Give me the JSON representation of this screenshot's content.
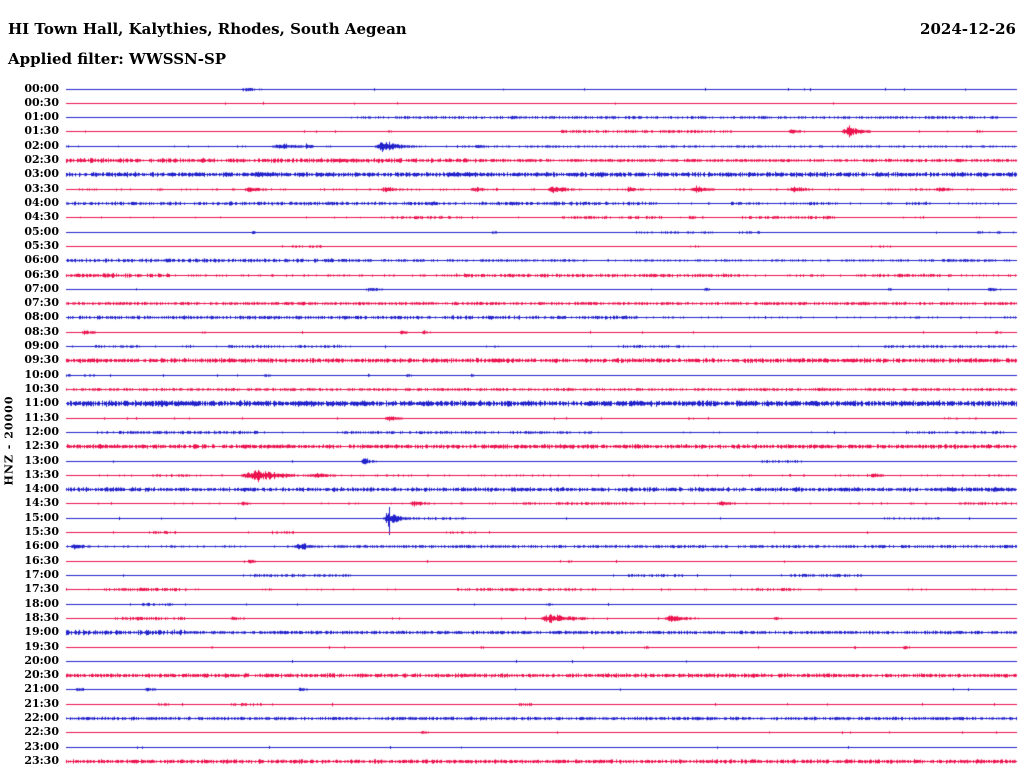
{
  "header": {
    "title": "HI Town Hall, Kalythies, Rhodes, South Aegean",
    "date": "2024-12-26",
    "filter_text": "Applied filter: WWSSN-SP"
  },
  "chart_data": {
    "type": "line",
    "variant": "helicorder-daily-seismogram",
    "title": "HI Town Hall, Kalythies, Rhodes, South Aegean",
    "date": "2024-12-26",
    "applied_filter": "WWSSN-SP",
    "y_axis_label": "HNZ - 20000",
    "row_interval_minutes": 30,
    "x_range_minutes": [
      0,
      30
    ],
    "grid": false,
    "colors": {
      "blue": "#2121CB",
      "red": "#EC124E",
      "text": "#000000",
      "background": "#FFFFFF"
    },
    "bursts_format": "[minute_within_row, amplitude_px, width_px]",
    "patches_format": "[start_minute, end_minute, amplitude_px]",
    "rows": [
      {
        "time": "00:00",
        "color": "blue",
        "noise": 0.15,
        "patches": [],
        "bursts": [
          [
            5.7,
            1.8,
            14
          ]
        ]
      },
      {
        "time": "00:30",
        "color": "red",
        "noise": 0.1,
        "patches": [],
        "bursts": []
      },
      {
        "time": "01:00",
        "color": "blue",
        "noise": 0.25,
        "patches": [
          [
            9,
            29.5,
            0.8
          ]
        ],
        "bursts": [
          [
            14.1,
            1.5,
            12
          ]
        ]
      },
      {
        "time": "01:30",
        "color": "red",
        "noise": 0.1,
        "patches": [
          [
            15.3,
            21,
            0.8
          ]
        ],
        "bursts": [
          [
            10.2,
            1.2,
            4
          ],
          [
            22.9,
            2.5,
            10
          ],
          [
            24.7,
            6,
            12
          ],
          [
            28.8,
            1.2,
            8
          ]
        ]
      },
      {
        "time": "02:00",
        "color": "blue",
        "noise": 0.4,
        "patches": [
          [
            12.5,
            30,
            0.55
          ]
        ],
        "bursts": [
          [
            6.8,
            3,
            16
          ],
          [
            7.6,
            4,
            4
          ],
          [
            10.0,
            6.5,
            16
          ],
          [
            13.0,
            1.5,
            10
          ]
        ]
      },
      {
        "time": "02:30",
        "color": "red",
        "noise": 0.8,
        "patches": [
          [
            0,
            13,
            1.5
          ],
          [
            13,
            30,
            0.85
          ]
        ],
        "bursts": [
          [
            8.7,
            2.2,
            22
          ]
        ]
      },
      {
        "time": "03:00",
        "color": "blue",
        "noise": 1.2,
        "patches": [
          [
            0,
            30,
            1.6
          ]
        ],
        "bursts": [
          [
            6.1,
            2.8,
            14
          ],
          [
            12.3,
            2.2,
            12
          ]
        ]
      },
      {
        "time": "03:30",
        "color": "red",
        "noise": 0.5,
        "patches": [],
        "bursts": [
          [
            5.8,
            3,
            12
          ],
          [
            10.1,
            3.5,
            10
          ],
          [
            12.9,
            2.5,
            10
          ],
          [
            15.4,
            4.5,
            12
          ],
          [
            17.8,
            2.5,
            10
          ],
          [
            19.9,
            3.5,
            12
          ],
          [
            23.0,
            3,
            12
          ],
          [
            27.6,
            2.5,
            10
          ]
        ]
      },
      {
        "time": "04:00",
        "color": "blue",
        "noise": 0.5,
        "patches": [
          [
            0,
            18.6,
            1.1
          ],
          [
            21,
            21.9,
            1.0
          ],
          [
            23.4,
            24.3,
            1.0
          ],
          [
            26.4,
            27.3,
            1.0
          ]
        ],
        "bursts": [
          [
            14.1,
            1.8,
            10
          ]
        ]
      },
      {
        "time": "04:30",
        "color": "red",
        "noise": 0.35,
        "patches": [
          [
            10.2,
            12.6,
            0.9
          ],
          [
            15.6,
            18.9,
            0.9
          ],
          [
            21.3,
            24.3,
            0.9
          ]
        ],
        "bursts": [
          [
            19.7,
            2,
            8
          ]
        ]
      },
      {
        "time": "05:00",
        "color": "blue",
        "noise": 0.2,
        "patches": [
          [
            18,
            20.1,
            0.6
          ],
          [
            21.2,
            21.9,
            0.7
          ],
          [
            28.7,
            29.5,
            0.7
          ]
        ],
        "bursts": [
          [
            5.9,
            1.2,
            6
          ],
          [
            13.5,
            1.3,
            6
          ],
          [
            20.2,
            1.3,
            8
          ]
        ]
      },
      {
        "time": "05:30",
        "color": "red",
        "noise": 0.2,
        "patches": [
          [
            7.1,
            8.1,
            0.7
          ],
          [
            19.7,
            20.1,
            0.7
          ],
          [
            25.4,
            26.1,
            0.7
          ]
        ],
        "bursts": []
      },
      {
        "time": "06:00",
        "color": "blue",
        "noise": 0.45,
        "patches": [
          [
            0,
            9,
            1.2
          ],
          [
            9,
            16.5,
            0.7
          ],
          [
            17.8,
            29.8,
            0.55
          ],
          [
            27.3,
            29.4,
            0.8
          ]
        ],
        "bursts": []
      },
      {
        "time": "06:30",
        "color": "red",
        "noise": 0.6,
        "patches": [
          [
            0,
            3.3,
            1.4
          ],
          [
            12,
            21.3,
            1.1
          ],
          [
            25.2,
            27.6,
            1.0
          ]
        ],
        "bursts": []
      },
      {
        "time": "07:00",
        "color": "blue",
        "noise": 0.25,
        "patches": [],
        "bursts": [
          [
            9.6,
            2,
            10
          ],
          [
            20.2,
            1.5,
            6
          ],
          [
            26,
            1.2,
            5
          ],
          [
            29.2,
            1.8,
            8
          ]
        ]
      },
      {
        "time": "07:30",
        "color": "red",
        "noise": 0.55,
        "patches": [
          [
            0,
            30,
            0.9
          ]
        ],
        "bursts": [
          [
            7.5,
            1.5,
            8
          ],
          [
            25.2,
            1.5,
            8
          ]
        ]
      },
      {
        "time": "08:00",
        "color": "blue",
        "noise": 0.5,
        "patches": [
          [
            0,
            18,
            1.2
          ]
        ],
        "bursts": [
          [
            13.4,
            1.8,
            10
          ]
        ]
      },
      {
        "time": "08:30",
        "color": "red",
        "noise": 0.25,
        "patches": [],
        "bursts": [
          [
            0.6,
            2.2,
            10
          ],
          [
            4.3,
            1.3,
            6
          ],
          [
            10.6,
            1.8,
            6
          ],
          [
            11.3,
            1.8,
            6
          ],
          [
            29.4,
            1.2,
            6
          ]
        ]
      },
      {
        "time": "09:00",
        "color": "blue",
        "noise": 0.35,
        "patches": [
          [
            0.9,
            2.4,
            0.8
          ],
          [
            5.1,
            8.7,
            0.9
          ],
          [
            17.4,
            19.5,
            0.8
          ],
          [
            25.8,
            29.7,
            0.8
          ]
        ],
        "bursts": []
      },
      {
        "time": "09:30",
        "color": "red",
        "noise": 1.0,
        "patches": [
          [
            0,
            30,
            1.5
          ]
        ],
        "bursts": []
      },
      {
        "time": "10:00",
        "color": "blue",
        "noise": 0.2,
        "patches": [
          [
            0,
            0.9,
            0.7
          ]
        ],
        "bursts": [
          [
            6.3,
            1.2,
            6
          ],
          [
            10.8,
            1.2,
            6
          ],
          [
            12.8,
            1.2,
            6
          ]
        ]
      },
      {
        "time": "10:30",
        "color": "red",
        "noise": 0.5,
        "patches": [
          [
            0,
            30,
            0.8
          ]
        ],
        "bursts": [
          [
            15.9,
            1.5,
            8
          ],
          [
            23.8,
            2,
            10
          ]
        ]
      },
      {
        "time": "11:00",
        "color": "blue",
        "noise": 1.6,
        "patches": [
          [
            0,
            30,
            2.0
          ]
        ],
        "bursts": []
      },
      {
        "time": "11:30",
        "color": "red",
        "noise": 0.2,
        "patches": [
          [
            27.6,
            28.8,
            0.6
          ]
        ],
        "bursts": [
          [
            10.2,
            3,
            10
          ],
          [
            19.7,
            1.2,
            6
          ]
        ]
      },
      {
        "time": "12:00",
        "color": "blue",
        "noise": 0.35,
        "patches": [
          [
            0.9,
            6.3,
            0.9
          ],
          [
            8.7,
            16.8,
            0.8
          ],
          [
            26.4,
            29.7,
            0.8
          ]
        ],
        "bursts": []
      },
      {
        "time": "12:30",
        "color": "red",
        "noise": 0.9,
        "patches": [
          [
            0,
            30,
            1.4
          ]
        ],
        "bursts": []
      },
      {
        "time": "13:00",
        "color": "blue",
        "noise": 0.2,
        "patches": [
          [
            21.9,
            23.1,
            0.7
          ]
        ],
        "bursts": [
          [
            9.4,
            4,
            7
          ]
        ]
      },
      {
        "time": "13:30",
        "color": "red",
        "noise": 0.45,
        "patches": [
          [
            2.7,
            3.9,
            0.8
          ]
        ],
        "bursts": [
          [
            6.0,
            7,
            24
          ],
          [
            7.9,
            2.5,
            14
          ],
          [
            25.5,
            2,
            10
          ]
        ]
      },
      {
        "time": "14:00",
        "color": "blue",
        "noise": 0.9,
        "patches": [
          [
            0,
            30,
            1.4
          ]
        ],
        "bursts": [
          [
            16.7,
            2,
            10
          ]
        ]
      },
      {
        "time": "14:30",
        "color": "red",
        "noise": 0.4,
        "patches": [
          [
            14.4,
            17.7,
            0.8
          ],
          [
            28.2,
            30,
            0.8
          ]
        ],
        "bursts": [
          [
            5.6,
            2,
            8
          ],
          [
            11.0,
            3,
            10
          ],
          [
            20.7,
            2.5,
            10
          ]
        ]
      },
      {
        "time": "15:00",
        "color": "blue",
        "noise": 0.25,
        "patches": [
          [
            10.5,
            12.6,
            0.8
          ],
          [
            25.8,
            27.6,
            0.6
          ]
        ],
        "bursts": [
          [
            10.2,
            9,
            9
          ]
        ]
      },
      {
        "time": "15:30",
        "color": "red",
        "noise": 0.3,
        "patches": [
          [
            2.6,
            3.5,
            0.9
          ],
          [
            6.5,
            7.2,
            1.0
          ],
          [
            12,
            13.2,
            0.6
          ]
        ],
        "bursts": []
      },
      {
        "time": "16:00",
        "color": "blue",
        "noise": 0.55,
        "patches": [
          [
            8.4,
            30,
            0.9
          ]
        ],
        "bursts": [
          [
            0.3,
            3.5,
            10
          ],
          [
            7.4,
            4,
            10
          ]
        ]
      },
      {
        "time": "16:30",
        "color": "red",
        "noise": 0.15,
        "patches": [],
        "bursts": [
          [
            5.8,
            1.5,
            8
          ],
          [
            15.9,
            1.0,
            6
          ]
        ]
      },
      {
        "time": "17:00",
        "color": "blue",
        "noise": 0.3,
        "patches": [
          [
            5.7,
            9,
            0.8
          ],
          [
            17.7,
            19.5,
            0.8
          ],
          [
            22.8,
            25.2,
            0.9
          ]
        ],
        "bursts": [
          [
            24.3,
            1.5,
            8
          ]
        ]
      },
      {
        "time": "17:30",
        "color": "red",
        "noise": 0.4,
        "patches": [
          [
            1.2,
            3.8,
            1.0
          ],
          [
            12.3,
            16.8,
            0.8
          ],
          [
            21.3,
            23.1,
            0.8
          ]
        ],
        "bursts": [
          [
            2.4,
            1.5,
            8
          ]
        ]
      },
      {
        "time": "18:00",
        "color": "blue",
        "noise": 0.2,
        "patches": [
          [
            2.4,
            3.5,
            0.9
          ]
        ],
        "bursts": [
          [
            15.2,
            1.2,
            6
          ]
        ]
      },
      {
        "time": "18:30",
        "color": "red",
        "noise": 0.3,
        "patches": [
          [
            1.5,
            3.8,
            1.0
          ]
        ],
        "bursts": [
          [
            5.3,
            2,
            8
          ],
          [
            15.3,
            6,
            20
          ],
          [
            19.1,
            3.5,
            16
          ],
          [
            22.4,
            1.5,
            6
          ]
        ]
      },
      {
        "time": "19:00",
        "color": "blue",
        "noise": 0.7,
        "patches": [
          [
            0,
            3.8,
            1.8
          ],
          [
            3.8,
            30,
            1.0
          ]
        ],
        "bursts": [
          [
            27.9,
            1.8,
            8
          ]
        ]
      },
      {
        "time": "19:30",
        "color": "red",
        "noise": 0.2,
        "patches": [],
        "bursts": [
          [
            4.6,
            1.2,
            5
          ],
          [
            13.1,
            1.2,
            5
          ],
          [
            18.3,
            1.2,
            5
          ],
          [
            26.5,
            1.5,
            6
          ]
        ]
      },
      {
        "time": "20:00",
        "color": "blue",
        "noise": 0.08,
        "patches": [],
        "bursts": []
      },
      {
        "time": "20:30",
        "color": "red",
        "noise": 0.85,
        "patches": [
          [
            0,
            30,
            1.3
          ]
        ],
        "bursts": []
      },
      {
        "time": "21:00",
        "color": "blue",
        "noise": 0.15,
        "patches": [],
        "bursts": [
          [
            0.4,
            2,
            8
          ],
          [
            2.6,
            1.5,
            10
          ],
          [
            7.4,
            2,
            6
          ]
        ]
      },
      {
        "time": "21:30",
        "color": "red",
        "noise": 0.2,
        "patches": [
          [
            2.9,
            3.3,
            0.8
          ],
          [
            5.2,
            6.2,
            1.0
          ],
          [
            14.3,
            14.7,
            0.8
          ]
        ],
        "bursts": []
      },
      {
        "time": "22:00",
        "color": "blue",
        "noise": 0.6,
        "patches": [
          [
            0,
            30,
            1.0
          ]
        ],
        "bursts": []
      },
      {
        "time": "22:30",
        "color": "red",
        "noise": 0.12,
        "patches": [],
        "bursts": [
          [
            11.3,
            1.2,
            8
          ]
        ]
      },
      {
        "time": "23:00",
        "color": "blue",
        "noise": 0.08,
        "patches": [],
        "bursts": [
          [
            12.5,
            0.8,
            4
          ]
        ]
      },
      {
        "time": "23:30",
        "color": "red",
        "noise": 0.8,
        "patches": [
          [
            0,
            30,
            1.3
          ]
        ],
        "bursts": []
      }
    ]
  }
}
